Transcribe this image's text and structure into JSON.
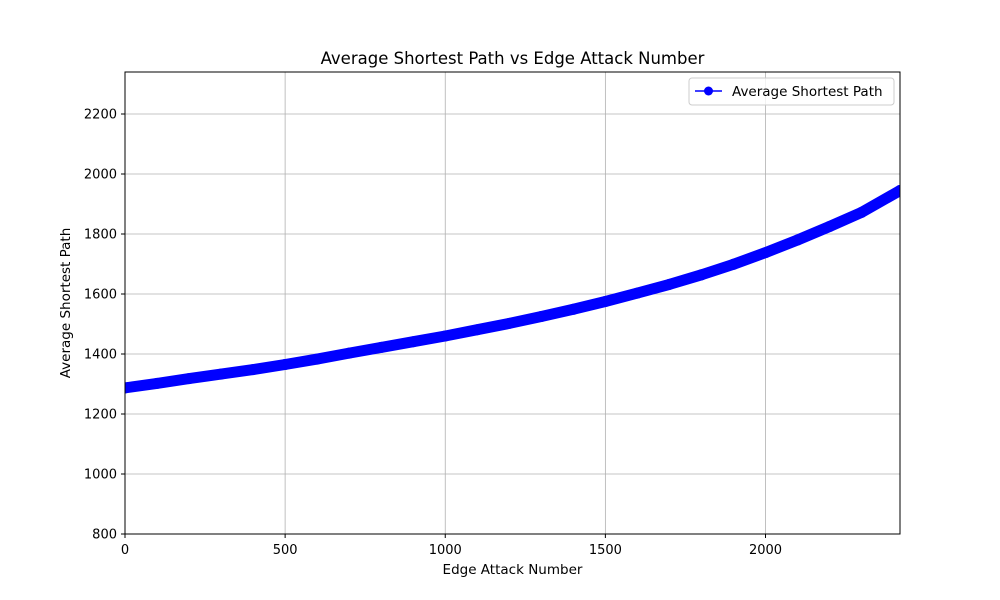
{
  "chart_data": {
    "type": "line",
    "title": "Average Shortest Path vs Edge Attack Number",
    "xlabel": "Edge Attack Number",
    "ylabel": "Average Shortest Path",
    "xlim": [
      0,
      2420
    ],
    "ylim": [
      800,
      2340
    ],
    "xticks": [
      0,
      500,
      1000,
      1500,
      2000
    ],
    "xtick_labels": [
      "0",
      "500",
      "1000",
      "1500",
      "2000"
    ],
    "yticks": [
      800,
      1000,
      1200,
      1400,
      1600,
      1800,
      2000,
      2200
    ],
    "ytick_labels": [
      "800",
      "1000",
      "1200",
      "1400",
      "1600",
      "1800",
      "2000",
      "2200"
    ],
    "grid": true,
    "legend": "top-right",
    "series": [
      {
        "name": "Average Shortest Path",
        "color": "#0000ff",
        "marker": "circle",
        "x": [
          0,
          100,
          200,
          300,
          400,
          500,
          600,
          700,
          800,
          900,
          1000,
          1100,
          1200,
          1300,
          1400,
          1500,
          1600,
          1700,
          1800,
          1900,
          2000,
          2100,
          2200,
          2300,
          2420
        ],
        "y": [
          1287,
          1302,
          1318,
          1333,
          1348,
          1365,
          1383,
          1403,
          1422,
          1441,
          1460,
          1481,
          1502,
          1525,
          1549,
          1575,
          1603,
          1632,
          1664,
          1699,
          1738,
          1780,
          1825,
          1872,
          1945
        ]
      }
    ]
  }
}
